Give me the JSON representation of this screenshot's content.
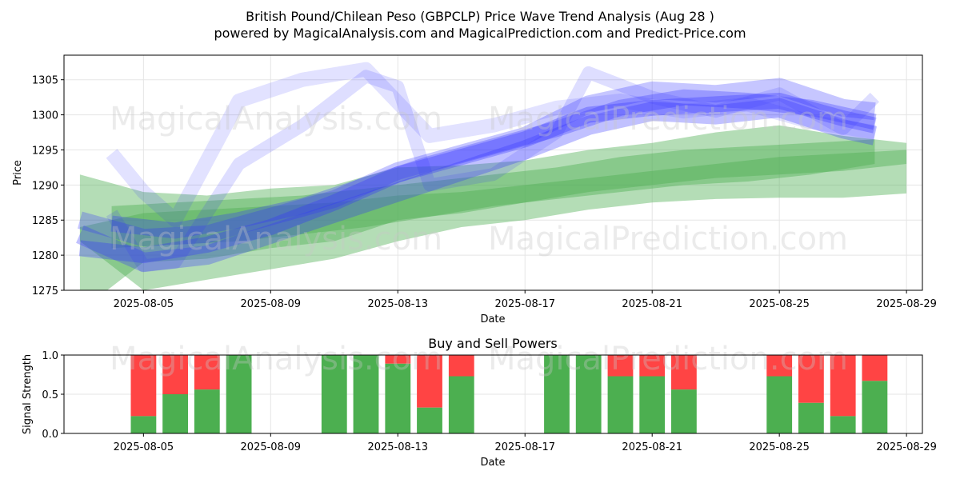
{
  "header": {
    "title": "British Pound/Chilean Peso (GBPCLP) Price Wave Trend Analysis (Aug 28 )",
    "subtitle": "powered by MagicalAnalysis.com and MagicalPrediction.com and Predict-Price.com"
  },
  "watermarks": [
    "MagicalAnalysis.com",
    "MagicalPrediction.com"
  ],
  "colors": {
    "green_band": "#4caf50",
    "blue_band": "#3333ff",
    "buy": "#4caf50",
    "sell": "#ff4444",
    "grid": "#e5e5e5"
  },
  "chart_data": [
    {
      "type": "area",
      "title": "",
      "xlabel": "Date",
      "ylabel": "Price",
      "x_range": [
        "2025-08-02T12:00",
        "2025-08-29T12:00"
      ],
      "ylim": [
        1275,
        1308.5
      ],
      "x_ticks": [
        "2025-08-05",
        "2025-08-09",
        "2025-08-13",
        "2025-08-17",
        "2025-08-21",
        "2025-08-25",
        "2025-08-29"
      ],
      "y_ticks": [
        1275,
        1280,
        1285,
        1290,
        1295,
        1300,
        1305
      ],
      "grid": true,
      "green_bands": [
        {
          "x": [
            "2025-08-03",
            "2025-08-05",
            "2025-08-07",
            "2025-08-09",
            "2025-08-11",
            "2025-08-13",
            "2025-08-15",
            "2025-08-17",
            "2025-08-19",
            "2025-08-21",
            "2025-08-23",
            "2025-08-25",
            "2025-08-27",
            "2025-08-29"
          ],
          "upper": [
            1291.5,
            1289.0,
            1288.5,
            1289.5,
            1290.0,
            1292.5,
            1292.8,
            1293.5,
            1295.0,
            1296.0,
            1297.5,
            1298.5,
            1297.0,
            1296.0
          ],
          "lower": [
            1272.0,
            1279.0,
            1279.5,
            1281.0,
            1282.0,
            1285.0,
            1286.0,
            1287.5,
            1289.0,
            1290.0,
            1291.0,
            1291.5,
            1292.0,
            1293.0
          ]
        },
        {
          "x": [
            "2025-08-03",
            "2025-08-05",
            "2025-08-07",
            "2025-08-09",
            "2025-08-11",
            "2025-08-13",
            "2025-08-15",
            "2025-08-17",
            "2025-08-19",
            "2025-08-21",
            "2025-08-23",
            "2025-08-25",
            "2025-08-27",
            "2025-08-29"
          ],
          "upper": [
            1284.0,
            1286.0,
            1286.5,
            1287.0,
            1287.5,
            1288.5,
            1289.0,
            1290.0,
            1291.0,
            1292.0,
            1293.0,
            1294.0,
            1294.5,
            1295.0
          ],
          "lower": [
            1282.0,
            1275.0,
            1276.5,
            1278.0,
            1279.5,
            1282.0,
            1284.0,
            1285.0,
            1286.5,
            1287.5,
            1288.0,
            1288.2,
            1288.2,
            1288.8
          ]
        },
        {
          "x": [
            "2025-08-04",
            "2025-08-06",
            "2025-08-08",
            "2025-08-10",
            "2025-08-12",
            "2025-08-14",
            "2025-08-16",
            "2025-08-18",
            "2025-08-20",
            "2025-08-22",
            "2025-08-24",
            "2025-08-26",
            "2025-08-28"
          ],
          "upper": [
            1287.0,
            1287.5,
            1288.0,
            1288.5,
            1289.5,
            1290.5,
            1291.5,
            1292.5,
            1294.0,
            1295.0,
            1295.5,
            1296.0,
            1296.5
          ],
          "lower": [
            1281.0,
            1281.5,
            1282.0,
            1283.0,
            1284.0,
            1285.5,
            1287.0,
            1288.0,
            1289.0,
            1290.0,
            1290.5,
            1291.5,
            1293.0
          ]
        }
      ],
      "blue_waves": [
        {
          "x": [
            "2025-08-03",
            "2025-08-05",
            "2025-08-07",
            "2025-08-09",
            "2025-08-11",
            "2025-08-13",
            "2025-08-15",
            "2025-08-17",
            "2025-08-19",
            "2025-08-21",
            "2025-08-23",
            "2025-08-25",
            "2025-08-27",
            "2025-08-28"
          ],
          "y": [
            1285.0,
            1282.5,
            1283.0,
            1285.5,
            1288.0,
            1292.0,
            1294.5,
            1297.0,
            1301.5,
            1303.5,
            1303.0,
            1304.0,
            1301.0,
            1300.5
          ]
        },
        {
          "x": [
            "2025-08-03",
            "2025-08-05",
            "2025-08-07",
            "2025-08-09",
            "2025-08-11",
            "2025-08-13",
            "2025-08-15",
            "2025-08-17",
            "2025-08-19",
            "2025-08-21",
            "2025-08-23",
            "2025-08-25",
            "2025-08-27",
            "2025-08-28"
          ],
          "y": [
            1281.0,
            1280.0,
            1281.5,
            1284.0,
            1287.5,
            1291.5,
            1294.0,
            1296.5,
            1300.0,
            1301.0,
            1301.5,
            1302.0,
            1299.5,
            1298.5
          ]
        },
        {
          "x": [
            "2025-08-04",
            "2025-08-05",
            "2025-08-06",
            "2025-08-08",
            "2025-08-10",
            "2025-08-12",
            "2025-08-14",
            "2025-08-16",
            "2025-08-18",
            "2025-08-20",
            "2025-08-22",
            "2025-08-24",
            "2025-08-26",
            "2025-08-28"
          ],
          "y": [
            1294.5,
            1289.0,
            1285.0,
            1302.0,
            1305.0,
            1306.5,
            1297.0,
            1298.5,
            1301.0,
            1302.0,
            1300.5,
            1301.5,
            1299.0,
            1297.5
          ]
        },
        {
          "x": [
            "2025-08-04",
            "2025-08-05",
            "2025-08-06",
            "2025-08-08",
            "2025-08-10",
            "2025-08-12",
            "2025-08-13",
            "2025-08-14",
            "2025-08-16",
            "2025-08-18",
            "2025-08-19",
            "2025-08-21",
            "2025-08-23",
            "2025-08-25",
            "2025-08-27",
            "2025-08-28"
          ],
          "y": [
            1286.0,
            1278.5,
            1279.0,
            1293.0,
            1298.5,
            1305.5,
            1304.0,
            1290.0,
            1291.5,
            1297.5,
            1306.0,
            1302.5,
            1300.5,
            1303.0,
            1298.0,
            1302.5
          ]
        },
        {
          "x": [
            "2025-08-03",
            "2025-08-05",
            "2025-08-07",
            "2025-08-09",
            "2025-08-11",
            "2025-08-13",
            "2025-08-15",
            "2025-08-17",
            "2025-08-19",
            "2025-08-21",
            "2025-08-23",
            "2025-08-25",
            "2025-08-27",
            "2025-08-28"
          ],
          "y": [
            1283.0,
            1279.0,
            1280.0,
            1283.0,
            1286.0,
            1289.0,
            1292.0,
            1295.0,
            1298.5,
            1300.5,
            1300.0,
            1301.0,
            1298.0,
            1297.0
          ]
        },
        {
          "x": [
            "2025-08-04",
            "2025-08-06",
            "2025-08-08",
            "2025-08-10",
            "2025-08-12",
            "2025-08-14",
            "2025-08-16",
            "2025-08-18",
            "2025-08-20",
            "2025-08-22",
            "2025-08-24",
            "2025-08-26",
            "2025-08-28"
          ],
          "y": [
            1284.5,
            1283.5,
            1285.0,
            1287.0,
            1290.0,
            1293.0,
            1295.5,
            1298.0,
            1301.0,
            1302.5,
            1302.0,
            1301.0,
            1299.0
          ]
        }
      ]
    },
    {
      "type": "bar",
      "title": "Buy and Sell Powers",
      "xlabel": "Date",
      "ylabel": "Signal Strength",
      "x_range": [
        "2025-08-02T12:00",
        "2025-08-29T12:00"
      ],
      "ylim": [
        0,
        1.0
      ],
      "x_ticks": [
        "2025-08-05",
        "2025-08-09",
        "2025-08-13",
        "2025-08-17",
        "2025-08-21",
        "2025-08-25",
        "2025-08-29"
      ],
      "y_ticks": [
        "0.0",
        "0.5",
        "1.0"
      ],
      "grid": true,
      "series": [
        {
          "name": "Buy",
          "color": "#4caf50"
        },
        {
          "name": "Sell",
          "color": "#ff4444"
        }
      ],
      "categories": [
        "2025-08-05",
        "2025-08-06",
        "2025-08-07",
        "2025-08-08",
        "2025-08-11",
        "2025-08-12",
        "2025-08-13",
        "2025-08-14",
        "2025-08-15",
        "2025-08-18",
        "2025-08-19",
        "2025-08-20",
        "2025-08-21",
        "2025-08-22",
        "2025-08-25",
        "2025-08-26",
        "2025-08-27",
        "2025-08-28"
      ],
      "buy_values": [
        0.22,
        0.5,
        0.56,
        1.0,
        1.0,
        1.0,
        0.89,
        0.33,
        0.73,
        1.0,
        1.0,
        0.73,
        0.73,
        0.56,
        0.73,
        0.39,
        0.22,
        0.67
      ]
    }
  ]
}
